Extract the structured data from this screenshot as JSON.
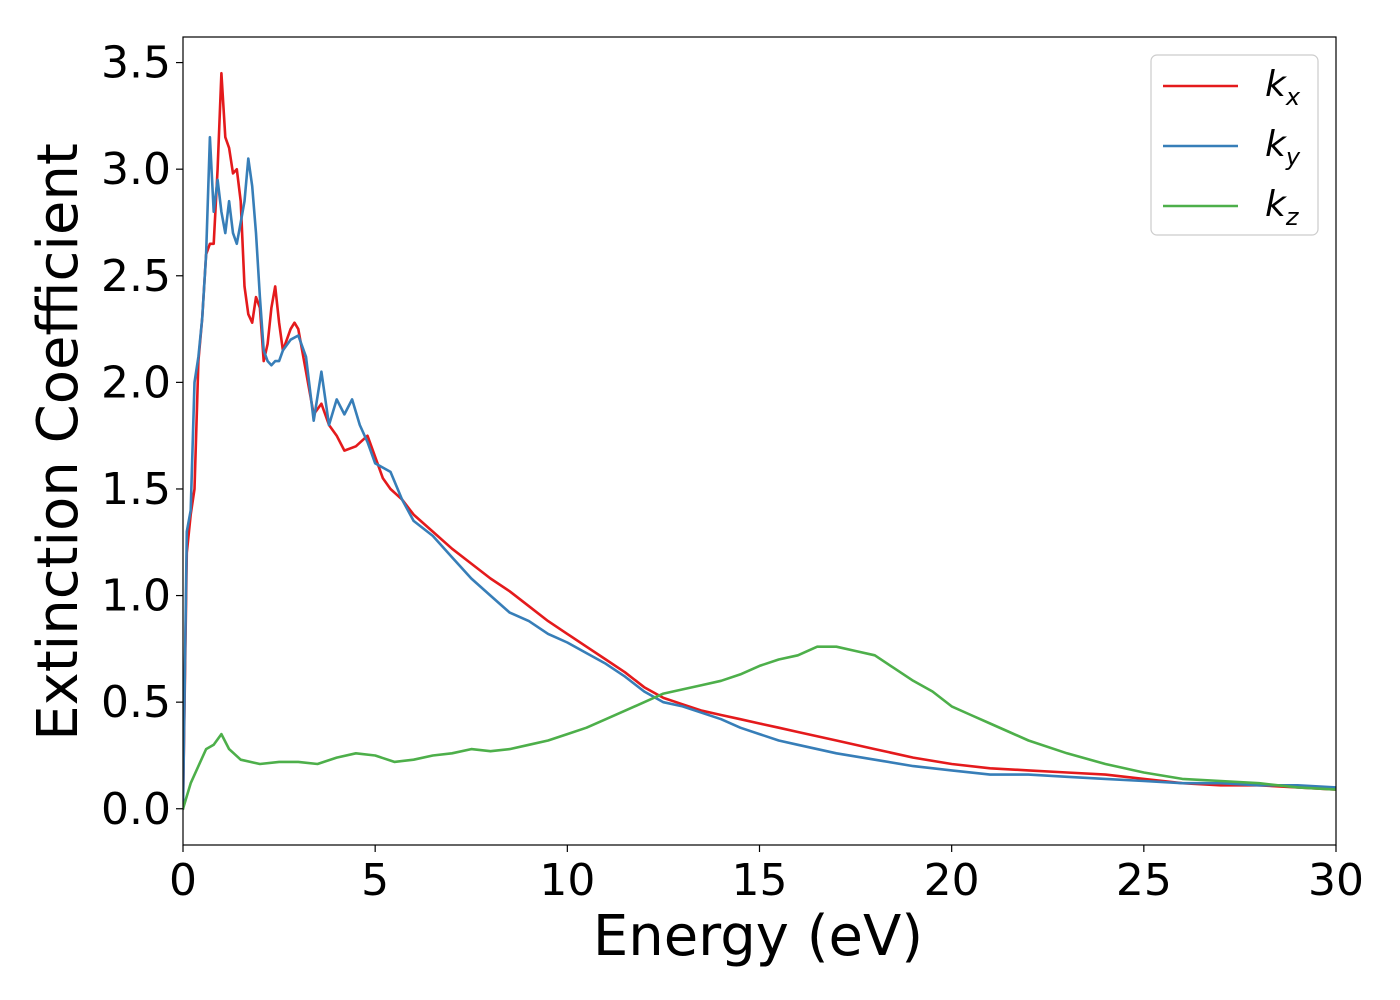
{
  "chart_data": {
    "type": "line",
    "title": "",
    "xlabel": "Energy (eV)",
    "ylabel": "Extinction Coefficient",
    "xlim": [
      0,
      30
    ],
    "ylim": [
      -0.17,
      3.62
    ],
    "x_ticks": [
      "0",
      "5",
      "10",
      "15",
      "20",
      "25",
      "30"
    ],
    "y_ticks": [
      "0.0",
      "0.5",
      "1.0",
      "1.5",
      "2.0",
      "2.5",
      "3.0",
      "3.5"
    ],
    "grid": false,
    "legend_position": "top-right",
    "series": [
      {
        "name": "k_x",
        "label_main": "k",
        "label_sub": "x",
        "color": "#e41a1c",
        "x": [
          0,
          0.1,
          0.2,
          0.3,
          0.4,
          0.5,
          0.6,
          0.7,
          0.8,
          0.9,
          1.0,
          1.1,
          1.2,
          1.3,
          1.4,
          1.5,
          1.6,
          1.7,
          1.8,
          1.9,
          2.0,
          2.1,
          2.2,
          2.3,
          2.4,
          2.5,
          2.6,
          2.7,
          2.8,
          2.9,
          3.0,
          3.2,
          3.4,
          3.6,
          3.8,
          4.0,
          4.2,
          4.5,
          4.8,
          5.0,
          5.2,
          5.4,
          5.7,
          6.0,
          6.5,
          7.0,
          7.5,
          8.0,
          8.5,
          9.0,
          9.5,
          10.0,
          10.5,
          11.0,
          11.5,
          12.0,
          12.5,
          13.0,
          13.5,
          14.0,
          14.5,
          15.0,
          15.5,
          16.0,
          17.0,
          18.0,
          19.0,
          20.0,
          21.0,
          22.0,
          23.0,
          24.0,
          25.0,
          26.0,
          27.0,
          28.0,
          29.0,
          30.0
        ],
        "y": [
          0.0,
          1.2,
          1.38,
          1.5,
          2.1,
          2.3,
          2.6,
          2.65,
          2.65,
          3.0,
          3.45,
          3.15,
          3.1,
          2.98,
          3.0,
          2.85,
          2.45,
          2.32,
          2.28,
          2.4,
          2.35,
          2.1,
          2.18,
          2.35,
          2.45,
          2.28,
          2.15,
          2.2,
          2.25,
          2.28,
          2.25,
          2.05,
          1.85,
          1.9,
          1.8,
          1.75,
          1.68,
          1.7,
          1.75,
          1.65,
          1.55,
          1.5,
          1.45,
          1.38,
          1.3,
          1.22,
          1.15,
          1.08,
          1.02,
          0.95,
          0.88,
          0.82,
          0.76,
          0.7,
          0.64,
          0.57,
          0.52,
          0.49,
          0.46,
          0.44,
          0.42,
          0.4,
          0.38,
          0.36,
          0.32,
          0.28,
          0.24,
          0.21,
          0.19,
          0.18,
          0.17,
          0.16,
          0.14,
          0.12,
          0.11,
          0.11,
          0.1,
          0.09
        ]
      },
      {
        "name": "k_y",
        "label_main": "k",
        "label_sub": "y",
        "color": "#377eb8",
        "x": [
          0,
          0.1,
          0.2,
          0.3,
          0.4,
          0.5,
          0.6,
          0.7,
          0.8,
          0.9,
          1.0,
          1.1,
          1.2,
          1.3,
          1.4,
          1.5,
          1.6,
          1.7,
          1.8,
          1.9,
          2.0,
          2.1,
          2.2,
          2.3,
          2.4,
          2.5,
          2.6,
          2.8,
          3.0,
          3.2,
          3.4,
          3.6,
          3.8,
          4.0,
          4.2,
          4.4,
          4.6,
          4.8,
          5.0,
          5.2,
          5.4,
          5.7,
          6.0,
          6.5,
          7.0,
          7.5,
          8.0,
          8.5,
          9.0,
          9.5,
          10.0,
          10.5,
          11.0,
          11.5,
          12.0,
          12.5,
          13.0,
          13.5,
          14.0,
          14.5,
          15.0,
          15.5,
          16.0,
          17.0,
          18.0,
          19.0,
          20.0,
          21.0,
          22.0,
          23.0,
          24.0,
          25.0,
          26.0,
          27.0,
          28.0,
          29.0,
          30.0
        ],
        "y": [
          0.0,
          1.3,
          1.4,
          2.0,
          2.12,
          2.3,
          2.6,
          3.15,
          2.8,
          2.95,
          2.8,
          2.7,
          2.85,
          2.7,
          2.65,
          2.75,
          2.85,
          3.05,
          2.92,
          2.7,
          2.4,
          2.15,
          2.1,
          2.08,
          2.1,
          2.1,
          2.15,
          2.2,
          2.22,
          2.12,
          1.82,
          2.05,
          1.8,
          1.92,
          1.85,
          1.92,
          1.8,
          1.72,
          1.62,
          1.6,
          1.58,
          1.45,
          1.35,
          1.28,
          1.18,
          1.08,
          1.0,
          0.92,
          0.88,
          0.82,
          0.78,
          0.73,
          0.68,
          0.62,
          0.55,
          0.5,
          0.48,
          0.45,
          0.42,
          0.38,
          0.35,
          0.32,
          0.3,
          0.26,
          0.23,
          0.2,
          0.18,
          0.16,
          0.16,
          0.15,
          0.14,
          0.13,
          0.12,
          0.12,
          0.11,
          0.11,
          0.1
        ]
      },
      {
        "name": "k_z",
        "label_main": "k",
        "label_sub": "z",
        "color": "#4daf4a",
        "x": [
          0,
          0.2,
          0.4,
          0.6,
          0.8,
          1.0,
          1.2,
          1.5,
          2.0,
          2.5,
          3.0,
          3.5,
          4.0,
          4.5,
          5.0,
          5.5,
          6.0,
          6.5,
          7.0,
          7.5,
          8.0,
          8.5,
          9.0,
          9.5,
          10.0,
          10.5,
          11.0,
          11.5,
          12.0,
          12.5,
          13.0,
          13.5,
          14.0,
          14.5,
          15.0,
          15.5,
          16.0,
          16.5,
          17.0,
          17.5,
          18.0,
          18.5,
          19.0,
          19.5,
          20.0,
          20.5,
          21.0,
          21.5,
          22.0,
          23.0,
          24.0,
          25.0,
          26.0,
          27.0,
          28.0,
          29.0,
          30.0
        ],
        "y": [
          0.0,
          0.12,
          0.2,
          0.28,
          0.3,
          0.35,
          0.28,
          0.23,
          0.21,
          0.22,
          0.22,
          0.21,
          0.24,
          0.26,
          0.25,
          0.22,
          0.23,
          0.25,
          0.26,
          0.28,
          0.27,
          0.28,
          0.3,
          0.32,
          0.35,
          0.38,
          0.42,
          0.46,
          0.5,
          0.54,
          0.56,
          0.58,
          0.6,
          0.63,
          0.67,
          0.7,
          0.72,
          0.76,
          0.76,
          0.74,
          0.72,
          0.66,
          0.6,
          0.55,
          0.48,
          0.44,
          0.4,
          0.36,
          0.32,
          0.26,
          0.21,
          0.17,
          0.14,
          0.13,
          0.12,
          0.1,
          0.09
        ]
      }
    ]
  }
}
